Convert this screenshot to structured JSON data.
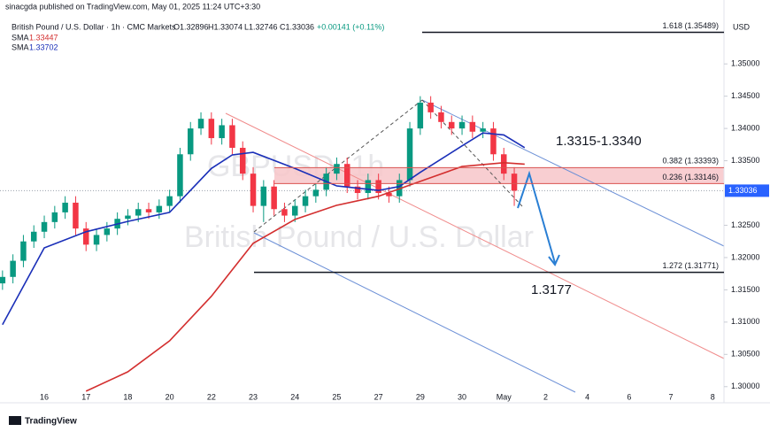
{
  "chart_data": {
    "type": "candlestick",
    "publisher": "sinacgda published on TradingView.com, May 01, 2025 11:24 UTC+3:30",
    "symbol": "British Pound / U.S. Dollar · 1h · CMC Markets",
    "ohlc": [
      "O1.32896",
      "H1.33074",
      "L1.32746",
      "C1.33036",
      "+0.00141 (+0.11%)"
    ],
    "watermark": [
      "GBPUSD, 1h",
      "British Pound / U.S. Dollar"
    ],
    "currency": "USD",
    "footer": "TradingView",
    "last_price": 1.33036,
    "annotations": [
      "1.3315-1.3340",
      "1.3177"
    ],
    "grid": false,
    "up_color": "#089981",
    "down_color": "#f23645",
    "xlim": [
      -1.06,
      16.27
    ],
    "ylim": [
      1.2975,
      1.3599
    ],
    "xticks": [
      {
        "value": 0,
        "label": "16"
      },
      {
        "value": 1,
        "label": "17"
      },
      {
        "value": 2,
        "label": "18"
      },
      {
        "value": 3,
        "label": "20"
      },
      {
        "value": 4,
        "label": "22"
      },
      {
        "value": 5,
        "label": "23"
      },
      {
        "value": 6,
        "label": "24"
      },
      {
        "value": 7,
        "label": "25"
      },
      {
        "value": 8,
        "label": "27"
      },
      {
        "value": 9,
        "label": "29"
      },
      {
        "value": 10,
        "label": "30"
      },
      {
        "value": 11,
        "label": "May"
      },
      {
        "value": 12,
        "label": "2"
      },
      {
        "value": 13,
        "label": "4"
      },
      {
        "value": 14,
        "label": "6"
      },
      {
        "value": 15,
        "label": "7"
      },
      {
        "value": 16,
        "label": "8"
      }
    ],
    "yticks": [
      {
        "value": 1.3,
        "label": "1.30000"
      },
      {
        "value": 1.305,
        "label": "1.30500"
      },
      {
        "value": 1.31,
        "label": "1.31000"
      },
      {
        "value": 1.315,
        "label": "1.31500"
      },
      {
        "value": 1.32,
        "label": "1.32000"
      },
      {
        "value": 1.325,
        "label": "1.32500"
      },
      {
        "value": 1.335,
        "label": "1.33500"
      },
      {
        "value": 1.34,
        "label": "1.34000"
      },
      {
        "value": 1.345,
        "label": "1.34500"
      },
      {
        "value": 1.35,
        "label": "1.35000"
      }
    ],
    "x": [
      -1,
      -0.75,
      -0.5,
      -0.25,
      0,
      0.25,
      0.5,
      0.75,
      1,
      1.25,
      1.5,
      1.75,
      2,
      2.25,
      2.5,
      2.75,
      3,
      3.25,
      3.5,
      3.75,
      4,
      4.25,
      4.5,
      4.75,
      5,
      5.25,
      5.5,
      5.75,
      6,
      6.25,
      6.5,
      6.75,
      7,
      7.25,
      7.5,
      7.75,
      8,
      8.25,
      8.5,
      8.75,
      9,
      9.25,
      9.5,
      9.75,
      10,
      10.25,
      10.5,
      10.75,
      11,
      11.25
    ],
    "open": [
      1.316,
      1.317,
      1.3195,
      1.3225,
      1.324,
      1.3255,
      1.327,
      1.3285,
      1.3245,
      1.322,
      1.3235,
      1.3245,
      1.326,
      1.3265,
      1.3275,
      1.327,
      1.328,
      1.3295,
      1.336,
      1.34,
      1.3415,
      1.3385,
      1.3405,
      1.337,
      1.333,
      1.328,
      1.331,
      1.3275,
      1.3265,
      1.328,
      1.3295,
      1.3305,
      1.333,
      1.3345,
      1.331,
      1.33,
      1.332,
      1.33,
      1.3295,
      1.332,
      1.34,
      1.344,
      1.3425,
      1.341,
      1.34,
      1.341,
      1.3395,
      1.34,
      1.336,
      1.333
    ],
    "high": [
      1.318,
      1.3205,
      1.3235,
      1.325,
      1.3265,
      1.328,
      1.3295,
      1.3295,
      1.3255,
      1.3245,
      1.3255,
      1.327,
      1.3275,
      1.3285,
      1.3285,
      1.329,
      1.3305,
      1.337,
      1.341,
      1.3425,
      1.3425,
      1.3415,
      1.3415,
      1.338,
      1.334,
      1.332,
      1.332,
      1.3285,
      1.329,
      1.3305,
      1.3315,
      1.334,
      1.3355,
      1.3355,
      1.332,
      1.333,
      1.333,
      1.331,
      1.333,
      1.341,
      1.345,
      1.345,
      1.3435,
      1.342,
      1.342,
      1.342,
      1.341,
      1.341,
      1.337,
      1.334
    ],
    "low": [
      1.315,
      1.316,
      1.3185,
      1.3215,
      1.323,
      1.3245,
      1.326,
      1.3235,
      1.321,
      1.321,
      1.3225,
      1.3235,
      1.325,
      1.3255,
      1.326,
      1.326,
      1.327,
      1.3285,
      1.335,
      1.339,
      1.3375,
      1.3375,
      1.336,
      1.332,
      1.327,
      1.3255,
      1.3265,
      1.3255,
      1.3255,
      1.327,
      1.3285,
      1.3295,
      1.332,
      1.33,
      1.329,
      1.329,
      1.329,
      1.3285,
      1.3285,
      1.331,
      1.339,
      1.3415,
      1.34,
      1.339,
      1.339,
      1.3385,
      1.3385,
      1.335,
      1.332,
      1.328
    ],
    "close": [
      1.317,
      1.3195,
      1.3225,
      1.324,
      1.3255,
      1.327,
      1.3285,
      1.3245,
      1.322,
      1.3235,
      1.3245,
      1.326,
      1.3265,
      1.3275,
      1.327,
      1.328,
      1.3295,
      1.336,
      1.34,
      1.3415,
      1.3385,
      1.3405,
      1.337,
      1.333,
      1.328,
      1.331,
      1.3275,
      1.3265,
      1.328,
      1.3295,
      1.3305,
      1.333,
      1.3345,
      1.331,
      1.33,
      1.332,
      1.33,
      1.3295,
      1.332,
      1.34,
      1.344,
      1.3425,
      1.341,
      1.34,
      1.341,
      1.3395,
      1.34,
      1.336,
      1.333,
      1.33036
    ],
    "series": [
      {
        "name": "SMA",
        "color": "#d32f2f",
        "x": [
          1,
          2,
          3,
          4,
          5,
          6,
          7,
          8,
          9,
          10,
          11,
          11.5
        ],
        "values": [
          1.2993,
          1.3023,
          1.3071,
          1.314,
          1.3222,
          1.3259,
          1.3281,
          1.3295,
          1.3318,
          1.3341,
          1.3347,
          1.33447
        ]
      },
      {
        "name": "SMA",
        "color": "#1a2fb8",
        "x": [
          -1,
          0,
          1,
          2,
          3,
          3.5,
          4,
          4.5,
          5,
          6,
          7,
          8,
          8.5,
          9,
          10,
          10.5,
          11,
          11.5
        ],
        "values": [
          1.3096,
          1.3215,
          1.324,
          1.3256,
          1.327,
          1.3304,
          1.3338,
          1.3359,
          1.3363,
          1.3338,
          1.3311,
          1.3304,
          1.331,
          1.3332,
          1.3373,
          1.3393,
          1.339,
          1.33702
        ]
      }
    ],
    "fib_levels": [
      {
        "label": "1.618 (1.35489)",
        "value": 1.35489
      },
      {
        "label": "0.382 (1.33393)",
        "value": 1.33393
      },
      {
        "label": "0.236 (1.33146)",
        "value": 1.33146
      },
      {
        "label": "1.272 (1.31771)",
        "value": 1.31771
      }
    ]
  }
}
